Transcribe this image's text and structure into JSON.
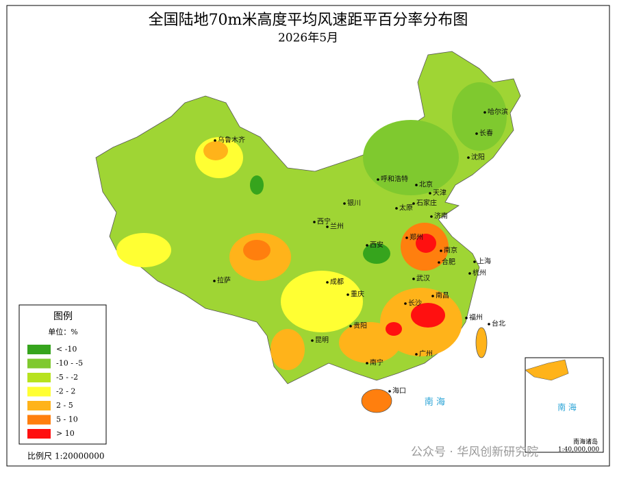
{
  "title": "全国陆地70m米高度平均风速距平百分率分布图",
  "subtitle": "2026年5月",
  "legend": {
    "title": "图例",
    "unit": "单位：%",
    "items": [
      {
        "label": "< -10",
        "color": "#36a41d"
      },
      {
        "label": "-10 - -5",
        "color": "#7fc92f"
      },
      {
        "label": "-5 - -2",
        "color": "#b7e21e"
      },
      {
        "label": "-2 - 2",
        "color": "#ffff33"
      },
      {
        "label": "2 - 5",
        "color": "#ffb31a"
      },
      {
        "label": "5 - 10",
        "color": "#ff7f0e"
      },
      {
        "label": "> 10",
        "color": "#ff1010"
      }
    ]
  },
  "cities": [
    "乌鲁木齐",
    "哈尔滨",
    "长春",
    "沈阳",
    "呼和浩特",
    "北京",
    "天津",
    "银川",
    "太原",
    "石家庄",
    "济南",
    "西宁",
    "兰州",
    "西安",
    "郑州",
    "南京",
    "合肥",
    "上海",
    "杭州",
    "拉萨",
    "成都",
    "武汉",
    "重庆",
    "长沙",
    "南昌",
    "福州",
    "台北",
    "贵阳",
    "昆明",
    "南宁",
    "广州",
    "海口"
  ],
  "sea_label": "南 海",
  "inset": {
    "sea_label": "南 海",
    "islands": "南海诸岛",
    "scale": "1:40,000,000"
  },
  "scale": "比例尺 1:20000000",
  "watermark": "公众号 · 华风创新研究院"
}
